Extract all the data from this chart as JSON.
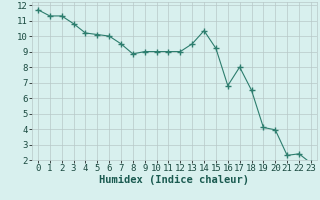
{
  "x": [
    0,
    1,
    2,
    3,
    4,
    5,
    6,
    7,
    8,
    9,
    10,
    11,
    12,
    13,
    14,
    15,
    16,
    17,
    18,
    19,
    20,
    21,
    22,
    23
  ],
  "y": [
    11.7,
    11.3,
    11.3,
    10.8,
    10.2,
    10.1,
    10.0,
    9.5,
    8.85,
    9.0,
    9.0,
    9.0,
    9.0,
    9.5,
    10.35,
    9.2,
    6.8,
    8.0,
    6.5,
    4.1,
    3.95,
    2.3,
    2.4,
    1.8
  ],
  "line_color": "#2d7d6e",
  "marker": "+",
  "marker_size": 4,
  "bg_color": "#d8f0ee",
  "plot_bg_color": "#d8f0ee",
  "grid_major_color": "#b8c8c8",
  "grid_minor_color": "#c8d8d8",
  "xlabel": "Humidex (Indice chaleur)",
  "xlim": [
    -0.5,
    23.5
  ],
  "ylim": [
    2,
    12.2
  ],
  "xticks": [
    0,
    1,
    2,
    3,
    4,
    5,
    6,
    7,
    8,
    9,
    10,
    11,
    12,
    13,
    14,
    15,
    16,
    17,
    18,
    19,
    20,
    21,
    22,
    23
  ],
  "yticks": [
    2,
    3,
    4,
    5,
    6,
    7,
    8,
    9,
    10,
    11,
    12
  ],
  "tick_fontsize": 6.5,
  "xlabel_fontsize": 7.5,
  "line_width": 0.8,
  "marker_linewidth": 1.0
}
